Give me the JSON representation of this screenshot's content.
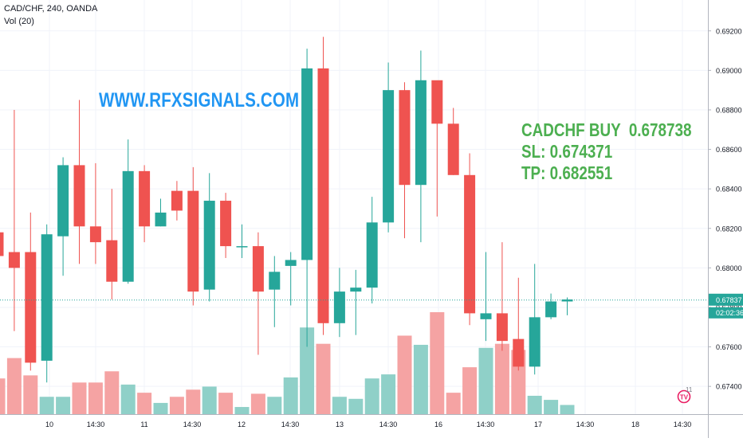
{
  "header": {
    "symbol_line": "CAD/CHF, 240, OANDA",
    "volume_line": "Vol (20)"
  },
  "annotations": {
    "website": "WWW.RFXSIGNALS.COM",
    "signal_line": "CADCHF BUY  0.678738",
    "sl_line": "SL: 0.674371",
    "tp_line": "TP: 0.682551"
  },
  "price_tag": {
    "price": "0.67837",
    "countdown": "02:02:36"
  },
  "logo": {
    "mark": "TV",
    "badge": "11"
  },
  "colors": {
    "up": "#26a69a",
    "down": "#ef5350",
    "vol_up": "#8fd0c8",
    "vol_down": "#f5a3a3",
    "price_line": "#26a69a",
    "website_text": "#2196f3",
    "signal_text": "#4caf50"
  },
  "chart_data": {
    "type": "candlestick",
    "symbol": "CAD/CHF",
    "interval": "240",
    "source": "OANDA",
    "ylim": [
      0.6732,
      0.6932
    ],
    "y_ticks": [
      "0.67400",
      "0.67600",
      "0.67800",
      "0.68000",
      "0.68200",
      "0.68400",
      "0.68600",
      "0.68800",
      "0.69000",
      "0.69200"
    ],
    "x_ticks": [
      "10",
      "14:30",
      "11",
      "14:30",
      "12",
      "14:30",
      "13",
      "14:30",
      "16",
      "14:30",
      "17",
      "14:30",
      "18",
      "14:30"
    ],
    "current_price": 0.67837,
    "volume_label": "Vol (20)",
    "candles": [
      {
        "o": 0.6818,
        "h": 0.6826,
        "l": 0.6787,
        "c": 0.6806,
        "v": 0.35
      },
      {
        "o": 0.6808,
        "h": 0.688,
        "l": 0.6768,
        "c": 0.68,
        "v": 0.55
      },
      {
        "o": 0.6808,
        "h": 0.6828,
        "l": 0.6748,
        "c": 0.6752,
        "v": 0.38
      },
      {
        "o": 0.6753,
        "h": 0.6822,
        "l": 0.6742,
        "c": 0.6817,
        "v": 0.17
      },
      {
        "o": 0.6816,
        "h": 0.6856,
        "l": 0.6796,
        "c": 0.6852,
        "v": 0.17
      },
      {
        "o": 0.6852,
        "h": 0.6885,
        "l": 0.6802,
        "c": 0.6821,
        "v": 0.31
      },
      {
        "o": 0.6821,
        "h": 0.6853,
        "l": 0.6802,
        "c": 0.6813,
        "v": 0.31
      },
      {
        "o": 0.6814,
        "h": 0.684,
        "l": 0.6784,
        "c": 0.6793,
        "v": 0.42
      },
      {
        "o": 0.6793,
        "h": 0.6865,
        "l": 0.6792,
        "c": 0.6849,
        "v": 0.29
      },
      {
        "o": 0.6849,
        "h": 0.6852,
        "l": 0.6813,
        "c": 0.6821,
        "v": 0.21
      },
      {
        "o": 0.6821,
        "h": 0.6835,
        "l": 0.6821,
        "c": 0.6828,
        "v": 0.11
      },
      {
        "o": 0.6839,
        "h": 0.6844,
        "l": 0.6824,
        "c": 0.6829,
        "v": 0.17
      },
      {
        "o": 0.6839,
        "h": 0.6851,
        "l": 0.6781,
        "c": 0.6788,
        "v": 0.24
      },
      {
        "o": 0.6789,
        "h": 0.6848,
        "l": 0.6783,
        "c": 0.6834,
        "v": 0.27
      },
      {
        "o": 0.6834,
        "h": 0.6838,
        "l": 0.6805,
        "c": 0.6811,
        "v": 0.21
      },
      {
        "o": 0.6811,
        "h": 0.6822,
        "l": 0.6805,
        "c": 0.6811,
        "v": 0.07
      },
      {
        "o": 0.6811,
        "h": 0.6818,
        "l": 0.6756,
        "c": 0.6788,
        "v": 0.2
      },
      {
        "o": 0.6789,
        "h": 0.6806,
        "l": 0.677,
        "c": 0.6798,
        "v": 0.17
      },
      {
        "o": 0.6801,
        "h": 0.6808,
        "l": 0.6781,
        "c": 0.6804,
        "v": 0.36
      },
      {
        "o": 0.6804,
        "h": 0.6911,
        "l": 0.676,
        "c": 0.6901,
        "v": 0.85
      },
      {
        "o": 0.6901,
        "h": 0.6917,
        "l": 0.6766,
        "c": 0.6772,
        "v": 0.69
      },
      {
        "o": 0.6772,
        "h": 0.68,
        "l": 0.6765,
        "c": 0.6788,
        "v": 0.17
      },
      {
        "o": 0.6788,
        "h": 0.6799,
        "l": 0.6766,
        "c": 0.679,
        "v": 0.15
      },
      {
        "o": 0.679,
        "h": 0.6836,
        "l": 0.6782,
        "c": 0.6823,
        "v": 0.35
      },
      {
        "o": 0.6823,
        "h": 0.6904,
        "l": 0.6818,
        "c": 0.689,
        "v": 0.39
      },
      {
        "o": 0.689,
        "h": 0.6894,
        "l": 0.6815,
        "c": 0.6842,
        "v": 0.77
      },
      {
        "o": 0.6842,
        "h": 0.691,
        "l": 0.6813,
        "c": 0.6895,
        "v": 0.68
      },
      {
        "o": 0.6895,
        "h": 0.6894,
        "l": 0.6826,
        "c": 0.6873,
        "v": 1.0
      },
      {
        "o": 0.6873,
        "h": 0.6881,
        "l": 0.6847,
        "c": 0.6847,
        "v": 0.21
      },
      {
        "o": 0.6847,
        "h": 0.6858,
        "l": 0.6771,
        "c": 0.6777,
        "v": 0.46
      },
      {
        "o": 0.6774,
        "h": 0.6808,
        "l": 0.6763,
        "c": 0.6777,
        "v": 0.65
      },
      {
        "o": 0.6777,
        "h": 0.6813,
        "l": 0.6758,
        "c": 0.6763,
        "v": 0.69
      },
      {
        "o": 0.6764,
        "h": 0.6795,
        "l": 0.6748,
        "c": 0.675,
        "v": 0.63
      },
      {
        "o": 0.675,
        "h": 0.6802,
        "l": 0.6746,
        "c": 0.6775,
        "v": 0.18
      },
      {
        "o": 0.6775,
        "h": 0.6787,
        "l": 0.6774,
        "c": 0.6783,
        "v": 0.14
      },
      {
        "o": 0.6783,
        "h": 0.6785,
        "l": 0.6776,
        "c": 0.6784,
        "v": 0.09
      }
    ]
  }
}
